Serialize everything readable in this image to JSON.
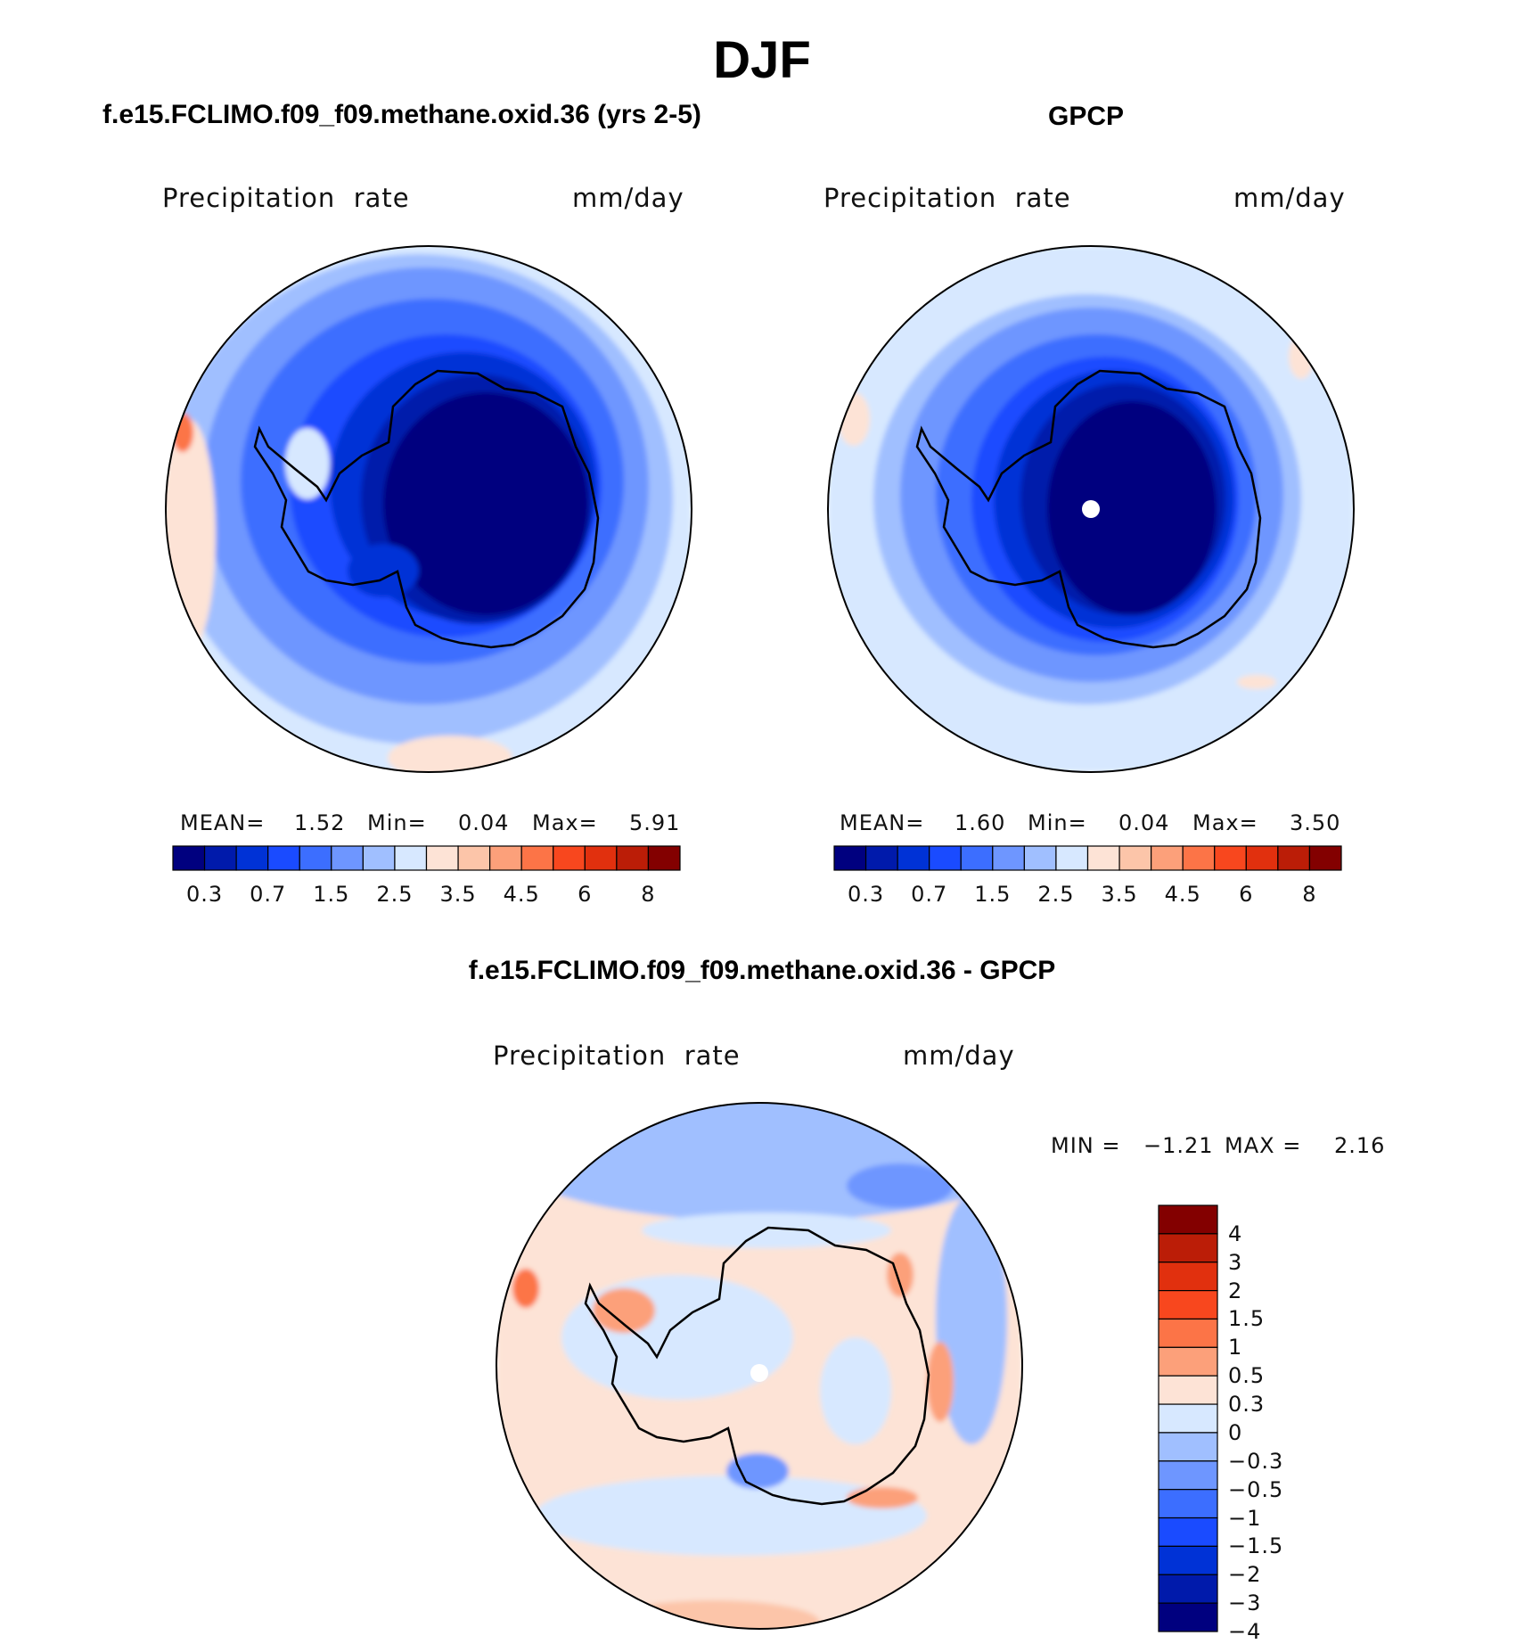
{
  "figure": {
    "title": "DJF",
    "colors": {
      "abs_scale": [
        "#00007f",
        "#001aab",
        "#0032d6",
        "#1a4bff",
        "#3c6eff",
        "#6e96ff",
        "#a0bfff",
        "#d7e8ff",
        "#fde3d6",
        "#fcc5a9",
        "#fca07a",
        "#fc7447",
        "#f8471e",
        "#e1300e",
        "#bb1d07",
        "#830000"
      ],
      "diff_scale": [
        "#830000",
        "#bb1d07",
        "#e1300e",
        "#f8471e",
        "#fc7447",
        "#fca07a",
        "#fde3d6",
        "#d7e8ff",
        "#a0bfff",
        "#6e96ff",
        "#3c6eff",
        "#1a4bff",
        "#0032d6",
        "#001aab",
        "#00007f"
      ]
    }
  },
  "panels": [
    {
      "id": "model",
      "title": "f.e15.FCLIMO.f09_f09.methane.oxid.36 (yrs 2-5)",
      "variable": "Precipitation  rate",
      "units": "mm/day",
      "stats": {
        "mean_label": "MEAN=",
        "mean": "1.52",
        "min_label": "Min=",
        "min": "0.04",
        "max_label": "Max=",
        "max": "5.91"
      },
      "colorbar_ticks": [
        "0.3",
        "0.7",
        "1.5",
        "2.5",
        "3.5",
        "4.5",
        "6",
        "8"
      ]
    },
    {
      "id": "obs",
      "title": "GPCP",
      "variable": "Precipitation  rate",
      "units": "mm/day",
      "stats": {
        "mean_label": "MEAN=",
        "mean": "1.60",
        "min_label": "Min=",
        "min": "0.04",
        "max_label": "Max=",
        "max": "3.50"
      },
      "colorbar_ticks": [
        "0.3",
        "0.7",
        "1.5",
        "2.5",
        "3.5",
        "4.5",
        "6",
        "8"
      ]
    },
    {
      "id": "diff",
      "title": "f.e15.FCLIMO.f09_f09.methane.oxid.36 - GPCP",
      "variable": "Precipitation  rate",
      "units": "mm/day",
      "stats": {
        "min_label": "MIN =",
        "min": "−1.21",
        "max_label": "MAX =",
        "max": "2.16"
      },
      "colorbar_ticks": [
        "4",
        "3",
        "2",
        "1.5",
        "1",
        "0.5",
        "0.3",
        "0",
        "−0.3",
        "−0.5",
        "−1",
        "−1.5",
        "−2",
        "−3",
        "−4"
      ]
    }
  ],
  "chart_data": [
    {
      "type": "heatmap",
      "projection": "south polar stereographic",
      "title": "f.e15.FCLIMO.f09_f09.methane.oxid.36 (yrs 2-5)",
      "variable": "Precipitation rate",
      "units": "mm/day",
      "contour_levels": [
        0.2,
        0.3,
        0.5,
        0.7,
        1,
        1.5,
        2,
        2.5,
        3,
        3.5,
        4,
        4.5,
        5,
        6,
        7,
        8
      ],
      "mean": 1.52,
      "min": 0.04,
      "max": 5.91
    },
    {
      "type": "heatmap",
      "projection": "south polar stereographic",
      "title": "GPCP",
      "variable": "Precipitation rate",
      "units": "mm/day",
      "contour_levels": [
        0.2,
        0.3,
        0.5,
        0.7,
        1,
        1.5,
        2,
        2.5,
        3,
        3.5,
        4,
        4.5,
        5,
        6,
        7,
        8
      ],
      "mean": 1.6,
      "min": 0.04,
      "max": 3.5
    },
    {
      "type": "heatmap",
      "projection": "south polar stereographic",
      "title": "f.e15.FCLIMO.f09_f09.methane.oxid.36 - GPCP",
      "variable": "Precipitation rate",
      "units": "mm/day",
      "contour_levels": [
        4,
        3,
        2,
        1.5,
        1,
        0.5,
        0.3,
        0,
        -0.3,
        -0.5,
        -1,
        -1.5,
        -2,
        -3,
        -4
      ],
      "min": -1.21,
      "max": 2.16
    }
  ]
}
